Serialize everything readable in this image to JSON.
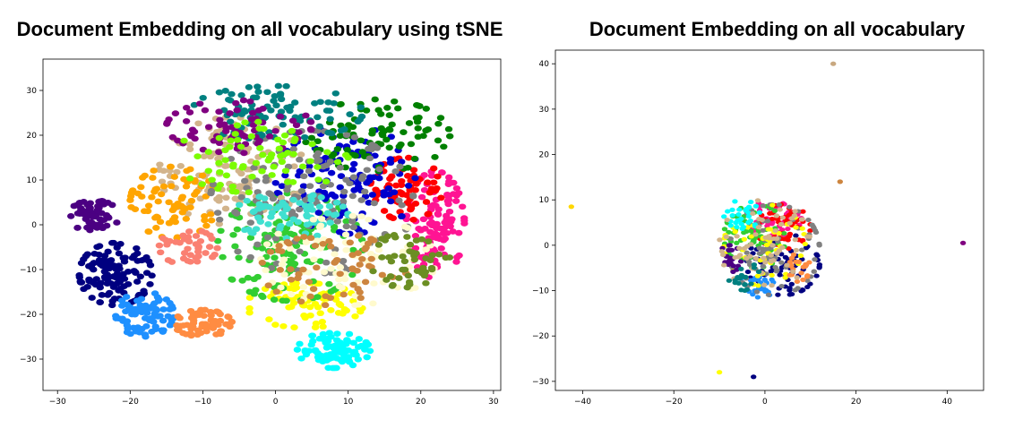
{
  "chart_data": [
    {
      "type": "scatter",
      "title": "Document Embedding on all vocabulary using tSNE",
      "xlim": [
        -32,
        31
      ],
      "ylim": [
        -37,
        37
      ],
      "xticks": [
        -30,
        -20,
        -10,
        0,
        10,
        20,
        30
      ],
      "yticks": [
        -30,
        -20,
        -10,
        0,
        10,
        20,
        30
      ],
      "grid": false,
      "clusters": [
        {
          "color": "#4b0082",
          "cx": -25,
          "cy": 2,
          "rx": 3.5,
          "ry": 3.5,
          "n": 60
        },
        {
          "color": "#000080",
          "cx": -22,
          "cy": -11,
          "rx": 5,
          "ry": 7,
          "n": 120
        },
        {
          "color": "#1e90ff",
          "cx": -18,
          "cy": -20,
          "rx": 4,
          "ry": 5,
          "n": 80
        },
        {
          "color": "#ff8c42",
          "cx": -10,
          "cy": -22,
          "rx": 4,
          "ry": 3,
          "n": 70
        },
        {
          "color": "#00ffff",
          "cx": 8,
          "cy": -28,
          "rx": 5,
          "ry": 4,
          "n": 90
        },
        {
          "color": "#ff1493",
          "cx": 22,
          "cy": 0,
          "rx": 4,
          "ry": 12,
          "n": 110
        },
        {
          "color": "#ff0000",
          "cx": 18,
          "cy": 8,
          "rx": 5,
          "ry": 7,
          "n": 70
        },
        {
          "color": "#ffff00",
          "cx": 4,
          "cy": -18,
          "rx": 8,
          "ry": 5,
          "n": 80
        },
        {
          "color": "#32cd32",
          "cx": 2,
          "cy": -5,
          "rx": 10,
          "ry": 12,
          "n": 140
        },
        {
          "color": "#0000cd",
          "cx": 10,
          "cy": 10,
          "rx": 10,
          "ry": 12,
          "n": 120
        },
        {
          "color": "#d2b48c",
          "cx": -6,
          "cy": 12,
          "rx": 10,
          "ry": 12,
          "n": 110
        },
        {
          "color": "#ffa500",
          "cx": -14,
          "cy": 5,
          "rx": 6,
          "ry": 8,
          "n": 80
        },
        {
          "color": "#008000",
          "cx": 14,
          "cy": 20,
          "rx": 10,
          "ry": 8,
          "n": 90
        },
        {
          "color": "#808080",
          "cx": 5,
          "cy": 5,
          "rx": 14,
          "ry": 16,
          "n": 140
        },
        {
          "color": "#40e0d0",
          "cx": 2,
          "cy": 2,
          "rx": 8,
          "ry": 5,
          "n": 70
        },
        {
          "color": "#008080",
          "cx": 0,
          "cy": 25,
          "rx": 12,
          "ry": 6,
          "n": 90
        },
        {
          "color": "#800080",
          "cx": -5,
          "cy": 22,
          "rx": 10,
          "ry": 6,
          "n": 70
        },
        {
          "color": "#fffacd",
          "cx": 10,
          "cy": -8,
          "rx": 12,
          "ry": 10,
          "n": 80
        },
        {
          "color": "#cd853f",
          "cx": 8,
          "cy": -10,
          "rx": 10,
          "ry": 8,
          "n": 60
        },
        {
          "color": "#7cfc00",
          "cx": -2,
          "cy": 15,
          "rx": 12,
          "ry": 8,
          "n": 70
        },
        {
          "color": "#fa8072",
          "cx": -12,
          "cy": -5,
          "rx": 4,
          "ry": 4,
          "n": 40
        },
        {
          "color": "#6b8e23",
          "cx": 18,
          "cy": -8,
          "rx": 6,
          "ry": 6,
          "n": 50
        }
      ]
    },
    {
      "type": "scatter",
      "title": "Document Embedding on all vocabulary",
      "xlim": [
        -46,
        48
      ],
      "ylim": [
        -32,
        43
      ],
      "xticks": [
        -40,
        -20,
        0,
        20,
        40
      ],
      "yticks": [
        -30,
        -20,
        -10,
        0,
        10,
        20,
        30,
        40
      ],
      "grid": false,
      "clusters": [
        {
          "color": "#000080",
          "cx": 4,
          "cy": -4,
          "rx": 8,
          "ry": 7,
          "n": 70
        },
        {
          "color": "#ff1493",
          "cx": 2,
          "cy": 6,
          "rx": 6,
          "ry": 4,
          "n": 50
        },
        {
          "color": "#1e90ff",
          "cx": -2,
          "cy": -9,
          "rx": 4,
          "ry": 3,
          "n": 30
        },
        {
          "color": "#ff0000",
          "cx": 4,
          "cy": 4,
          "rx": 6,
          "ry": 5,
          "n": 50
        },
        {
          "color": "#32cd32",
          "cx": -2,
          "cy": 2,
          "rx": 7,
          "ry": 7,
          "n": 60
        },
        {
          "color": "#808080",
          "cx": 2,
          "cy": -1,
          "rx": 10,
          "ry": 10,
          "n": 80
        },
        {
          "color": "#ffff00",
          "cx": 0,
          "cy": 0,
          "rx": 9,
          "ry": 9,
          "n": 50
        },
        {
          "color": "#00ffff",
          "cx": -5,
          "cy": 6,
          "rx": 4,
          "ry": 4,
          "n": 30
        },
        {
          "color": "#ff8c42",
          "cx": 7,
          "cy": -5,
          "rx": 3,
          "ry": 3,
          "n": 20
        },
        {
          "color": "#4b0082",
          "cx": -8,
          "cy": -3,
          "rx": 3,
          "ry": 3,
          "n": 20
        },
        {
          "color": "#d2b48c",
          "cx": 0,
          "cy": 0,
          "rx": 10,
          "ry": 10,
          "n": 60
        },
        {
          "color": "#008080",
          "cx": -4,
          "cy": -7,
          "rx": 4,
          "ry": 3,
          "n": 20
        }
      ],
      "outliers": [
        {
          "x": 15,
          "y": 40,
          "color": "#c8a880"
        },
        {
          "x": 16.5,
          "y": 14,
          "color": "#cd853f"
        },
        {
          "x": -42.5,
          "y": 8.5,
          "color": "#ffd700"
        },
        {
          "x": 43.5,
          "y": 0.5,
          "color": "#800080"
        },
        {
          "x": -10,
          "y": -28,
          "color": "#ffff00"
        },
        {
          "x": -2.5,
          "y": -29,
          "color": "#000080"
        }
      ]
    }
  ]
}
